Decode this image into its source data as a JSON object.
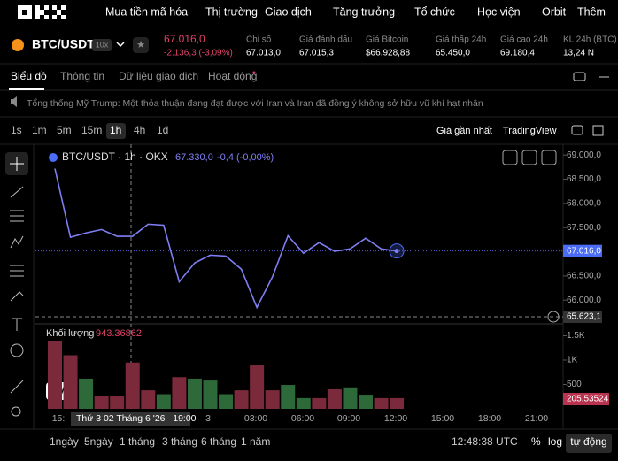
{
  "nav": {
    "items": [
      "Mua tiền mã hóa",
      "Thị trường",
      "Giao dịch",
      "Tăng trưởng",
      "Tổ chức",
      "Học viện",
      "Orbit",
      "Thêm"
    ]
  },
  "ticker": {
    "symbol": "BTC/USDT",
    "leverage": "10x",
    "price": "67.016,0",
    "change": "-2.136,3 (-3,09%)",
    "stats": [
      {
        "label": "Chỉ số",
        "value": "67.013,0"
      },
      {
        "label": "Giá đánh dấu",
        "value": "67.015,3"
      },
      {
        "label": "Giá Bitcoin",
        "value": "$66.928,88"
      },
      {
        "label": "Giá thấp 24h",
        "value": "65.450,0"
      },
      {
        "label": "Giá cao 24h",
        "value": "69.180,4"
      },
      {
        "label": "KL 24h (BTC)",
        "value": "13,24 N"
      }
    ]
  },
  "tabs": [
    "Biểu đồ",
    "Thông tin",
    "Dữ liệu giao dịch",
    "Hoạt động"
  ],
  "news": "Tổng thống Mỹ Trump: Một thỏa thuận đang đạt được với Iran và Iran đã đồng ý không sở hữu vũ khí hạt nhân",
  "toolbar": {
    "intervals": [
      "1s",
      "1m",
      "5m",
      "15m",
      "1h",
      "4h",
      "1d"
    ],
    "price_type": "Giá gần nhất",
    "view": "TradingView"
  },
  "chart_data": {
    "type": "line",
    "legend": "BTC/USDT · 1h · OKX",
    "legend_price": "67.330,0",
    "legend_change": "-0,4 (-0,00%)",
    "color": "#7f7ff5",
    "values": [
      68720,
      67300,
      67390,
      67460,
      67320,
      67320,
      67570,
      67550,
      66380,
      66770,
      66930,
      66910,
      66640,
      65850,
      66480,
      67330,
      66970,
      67190,
      67010,
      67060,
      67280,
      67060,
      67016
    ],
    "ylim": [
      65620,
      69150
    ],
    "yticks": [
      {
        "value": 69000,
        "label": "69.000,0"
      },
      {
        "value": 68500,
        "label": "68.500,0"
      },
      {
        "value": 68000,
        "label": "68.000,0"
      },
      {
        "value": 67500,
        "label": "67.500,0"
      },
      {
        "value": 66500,
        "label": "66.500,0"
      },
      {
        "value": 66000,
        "label": "66.000,0"
      }
    ],
    "last_price": {
      "value": 67016,
      "label": "67.016,0"
    },
    "crosshair_price": "65.623,1",
    "crosshair_time": "Thứ 3 02 Tháng 6 '26   19:00",
    "time_labels": [
      "15:",
      "3",
      "03:00",
      "06:00",
      "09:00",
      "12:00",
      "15:00",
      "18:00",
      "21:00"
    ],
    "volume": {
      "title": "Khối lượng",
      "current": "943.36862",
      "last_label": "205.53524",
      "values": [
        1400,
        1100,
        620,
        270,
        270,
        950,
        380,
        300,
        650,
        620,
        580,
        300,
        380,
        890,
        380,
        490,
        220,
        220,
        400,
        440,
        290,
        220,
        220
      ],
      "colors": [
        "#7a2a3a",
        "#7a2a3a",
        "#2e6a39",
        "#7a2a3a",
        "#7a2a3a",
        "#7a2a3a",
        "#7a2a3a",
        "#2e6a39",
        "#7a2a3a",
        "#2e6a39",
        "#2e6a39",
        "#2e6a39",
        "#7a2a3a",
        "#7a2a3a",
        "#7a2a3a",
        "#2e6a39",
        "#2e6a39",
        "#7a2a3a",
        "#7a2a3a",
        "#2e6a39",
        "#2e6a39",
        "#7a2a3a",
        "#7a2a3a"
      ],
      "ylim": [
        0,
        1700
      ],
      "yticks": [
        {
          "value": 1500,
          "label": "1.5K"
        },
        {
          "value": 1000,
          "label": "1K"
        },
        500
      ]
    }
  },
  "footer": {
    "ranges": [
      "1ngày",
      "5ngày",
      "1 tháng",
      "3 tháng",
      "6 tháng",
      "1 năm"
    ],
    "clock": "12:48:38 UTC",
    "percent": "%",
    "log": "log",
    "auto": "tự động"
  }
}
